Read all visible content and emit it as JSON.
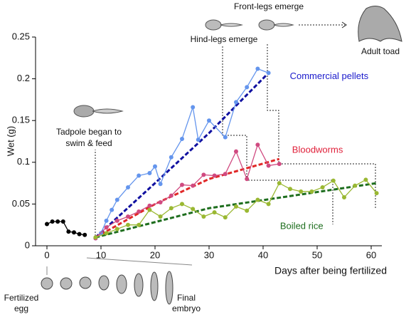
{
  "chart_data": {
    "type": "line",
    "x_label": "Days after being fertilized",
    "y_label": "Wet (g)",
    "xlim": [
      -2,
      62
    ],
    "xticks": [
      0,
      10,
      20,
      30,
      40,
      50,
      60
    ],
    "ylim": [
      0,
      0.25
    ],
    "yticks": [
      0,
      0.05,
      0.1,
      0.15,
      0.2,
      0.25
    ],
    "series": [
      {
        "color": "#000000",
        "x": [
          0,
          1,
          2,
          3,
          4,
          5,
          6,
          7
        ],
        "values": [
          0.026,
          0.029,
          0.029,
          0.029,
          0.017,
          0.016,
          0.014,
          0.013
        ]
      },
      {
        "name": "Commercial pellets",
        "color": "#6495ed",
        "label_color": "#1a1acc",
        "x": [
          9,
          10,
          11,
          12,
          13,
          15,
          17,
          19,
          20,
          21,
          23,
          25,
          27,
          28,
          30,
          33,
          35,
          37,
          39,
          41
        ],
        "values": [
          0.009,
          0.015,
          0.03,
          0.043,
          0.055,
          0.07,
          0.084,
          0.087,
          0.095,
          0.074,
          0.106,
          0.128,
          0.166,
          0.127,
          0.15,
          0.13,
          0.172,
          0.19,
          0.212,
          0.207
        ]
      },
      {
        "name": "Bloodworms",
        "color": "#d04a80",
        "label_color": "#e0203a",
        "x": [
          9,
          11,
          13,
          15,
          17,
          19,
          21,
          23,
          25,
          27,
          29,
          31,
          33,
          35,
          37,
          39,
          41,
          43
        ],
        "values": [
          0.009,
          0.022,
          0.03,
          0.035,
          0.041,
          0.048,
          0.052,
          0.06,
          0.073,
          0.072,
          0.085,
          0.084,
          0.086,
          0.113,
          0.08,
          0.121,
          0.096,
          0.098
        ]
      },
      {
        "name": "Boiled rice",
        "color": "#9ab832",
        "label_color": "#1e6e1e",
        "x": [
          9,
          11,
          13,
          15,
          17,
          19,
          21,
          23,
          25,
          27,
          29,
          31,
          33,
          35,
          37,
          39,
          41,
          43,
          45,
          47,
          49,
          51,
          53,
          55,
          57,
          59,
          61
        ],
        "values": [
          0.01,
          0.015,
          0.02,
          0.025,
          0.025,
          0.043,
          0.035,
          0.045,
          0.05,
          0.044,
          0.035,
          0.04,
          0.034,
          0.047,
          0.042,
          0.055,
          0.05,
          0.075,
          0.068,
          0.065,
          0.065,
          0.07,
          0.078,
          0.058,
          0.072,
          0.079,
          0.063
        ]
      }
    ],
    "trends": [
      {
        "color": "#1010a0",
        "x": [
          9,
          20,
          30,
          41
        ],
        "values": [
          0.01,
          0.075,
          0.135,
          0.207
        ]
      },
      {
        "color": "#e02828",
        "x": [
          9,
          20,
          30,
          43
        ],
        "values": [
          0.01,
          0.05,
          0.08,
          0.104
        ]
      },
      {
        "color": "#1e6e1e",
        "x": [
          9,
          30,
          61
        ],
        "values": [
          0.01,
          0.045,
          0.075
        ]
      }
    ],
    "annotations": {
      "tadpole": [
        "Tadpole began to",
        "swim & feed"
      ],
      "hind_legs": "Hind-legs emerge",
      "front_legs": "Front-legs emerge",
      "adult": "Adult toad",
      "egg": [
        "Fertilized",
        "egg"
      ],
      "embryo": [
        "Final",
        "embryo"
      ]
    }
  }
}
